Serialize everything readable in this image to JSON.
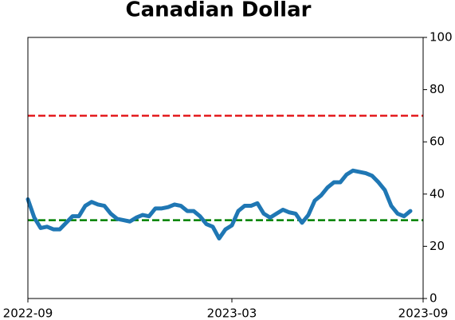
{
  "chart_data": {
    "type": "line",
    "title": "Canadian Dollar",
    "categories": [
      "2022-09",
      null,
      null,
      null,
      null,
      null,
      null,
      null,
      null,
      null,
      null,
      null,
      null,
      null,
      null,
      null,
      null,
      null,
      null,
      null,
      null,
      null,
      null,
      null,
      null,
      null,
      null,
      null,
      null,
      null,
      null,
      null,
      "2023-03",
      null,
      null,
      null,
      null,
      null,
      null,
      null,
      null,
      null,
      null,
      null,
      null,
      null,
      null,
      null,
      null,
      null,
      null,
      null,
      null,
      null,
      null,
      null,
      null,
      null,
      null,
      null,
      null,
      null,
      "2023-09"
    ],
    "series": [
      {
        "color": "#1f77b4",
        "values": [
          38,
          31,
          27,
          27.5,
          26.5,
          26.5,
          29,
          31.5,
          31.5,
          35.5,
          37,
          36,
          35.5,
          32.5,
          30.5,
          30,
          29.5,
          31,
          32,
          31.5,
          34.5,
          34.5,
          35,
          36,
          35.5,
          33.5,
          33.5,
          31.5,
          28.5,
          27.5,
          23,
          26.5,
          28,
          33.5,
          35.5,
          35.5,
          36.5,
          32.5,
          31,
          32.5,
          34,
          33,
          32.5,
          29,
          32,
          37.5,
          39.5,
          42.5,
          44.5,
          44.5,
          47.5,
          49,
          48.5,
          48,
          47,
          44.5,
          41.5,
          35.5,
          32.5,
          31.5,
          33.5,
          null,
          null
        ]
      }
    ],
    "ylim": [
      0,
      100
    ],
    "yticks": [
      0,
      20,
      40,
      60,
      80,
      100
    ],
    "hlines": [
      {
        "value": 70,
        "color": "#e41a1c"
      },
      {
        "value": 30,
        "color": "#008000"
      }
    ]
  }
}
